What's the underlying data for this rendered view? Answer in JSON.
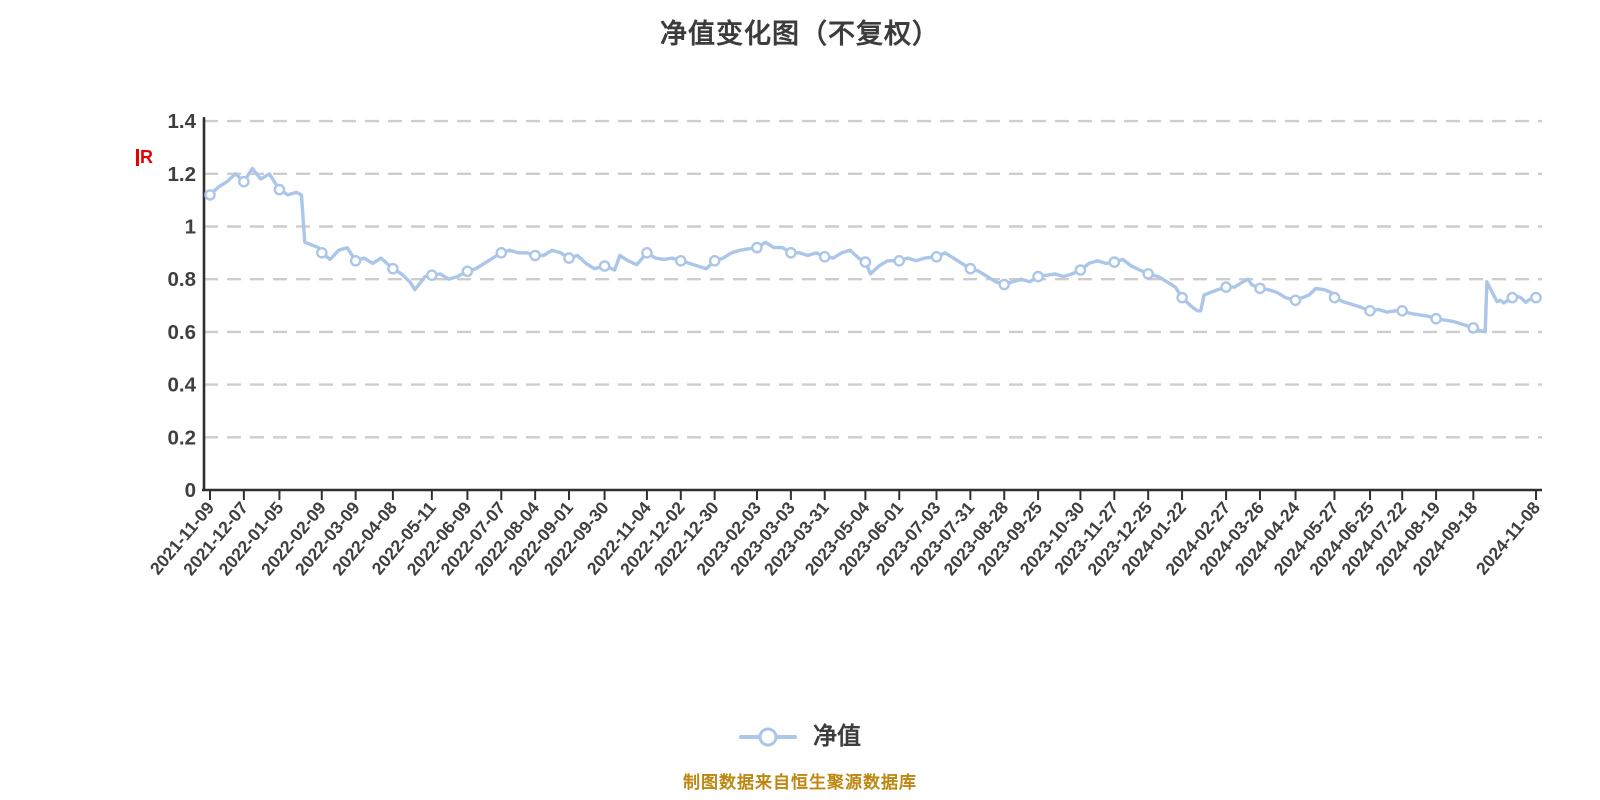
{
  "header": {
    "title": "净值变化图（不复权）"
  },
  "event_flag": {
    "label": "R"
  },
  "legend": {
    "items": [
      {
        "label": "净值"
      }
    ]
  },
  "footer": {
    "note": "制图数据来自恒生聚源数据库"
  },
  "chart_data": {
    "type": "line",
    "title": "净值变化图（不复权）",
    "xlabel": "",
    "ylabel": "",
    "ylim": [
      0,
      1.4
    ],
    "y_ticks": [
      0,
      0.2,
      0.4,
      0.6,
      0.8,
      1,
      1.2,
      1.4
    ],
    "grid": "horizontal-dashed",
    "legend_position": "bottom",
    "colors": {
      "line": "#abc6e8",
      "marker_fill": "#ffffff",
      "grid": "#cdcdcd",
      "axis": "#2f2f2f",
      "labels": "#3f3f3f",
      "title": "#3c3c3c",
      "footer": "#bd8712",
      "flag": "#e60000"
    },
    "x_tick_labels": [
      "2021-11-09",
      "2021-12-07",
      "2022-01-05",
      "2022-02-09",
      "2022-03-09",
      "2022-04-08",
      "2022-05-11",
      "2022-06-09",
      "2022-07-07",
      "2022-08-04",
      "2022-09-01",
      "2022-09-30",
      "2022-11-04",
      "2022-12-02",
      "2022-12-30",
      "2023-02-03",
      "2023-03-03",
      "2023-03-31",
      "2023-05-04",
      "2023-06-01",
      "2023-07-03",
      "2023-07-31",
      "2023-08-28",
      "2023-09-25",
      "2023-10-30",
      "2023-11-27",
      "2023-12-25",
      "2024-01-22",
      "2024-02-27",
      "2024-03-26",
      "2024-04-24",
      "2024-05-27",
      "2024-06-25",
      "2024-07-22",
      "2024-08-19",
      "2024-09-18",
      "2024-11-08"
    ],
    "series": [
      {
        "name": "净值",
        "points": [
          [
            "2021-11-09",
            1.12,
            1
          ],
          [
            "2021-11-16",
            1.15
          ],
          [
            "2021-11-23",
            1.17
          ],
          [
            "2021-11-30",
            1.2
          ],
          [
            "2021-12-07",
            1.17,
            1
          ],
          [
            "2021-12-14",
            1.22
          ],
          [
            "2021-12-21",
            1.18
          ],
          [
            "2021-12-28",
            1.2
          ],
          [
            "2022-01-05",
            1.14,
            1
          ],
          [
            "2022-01-12",
            1.12
          ],
          [
            "2022-01-19",
            1.13
          ],
          [
            "2022-01-24",
            1.12
          ],
          [
            "2022-01-26",
            0.94
          ],
          [
            "2022-02-07",
            0.92
          ],
          [
            "2022-02-09",
            0.9,
            1
          ],
          [
            "2022-02-16",
            0.875
          ],
          [
            "2022-02-23",
            0.91
          ],
          [
            "2022-03-02",
            0.92
          ],
          [
            "2022-03-09",
            0.87,
            1
          ],
          [
            "2022-03-16",
            0.88
          ],
          [
            "2022-03-23",
            0.86
          ],
          [
            "2022-03-30",
            0.88
          ],
          [
            "2022-04-08",
            0.84,
            1
          ],
          [
            "2022-04-15",
            0.82
          ],
          [
            "2022-04-22",
            0.79
          ],
          [
            "2022-04-27",
            0.76
          ],
          [
            "2022-05-05",
            0.81
          ],
          [
            "2022-05-11",
            0.815,
            1
          ],
          [
            "2022-05-18",
            0.82
          ],
          [
            "2022-05-25",
            0.8
          ],
          [
            "2022-06-01",
            0.81
          ],
          [
            "2022-06-09",
            0.83,
            1
          ],
          [
            "2022-06-16",
            0.84
          ],
          [
            "2022-06-23",
            0.86
          ],
          [
            "2022-06-30",
            0.88
          ],
          [
            "2022-07-07",
            0.9,
            1
          ],
          [
            "2022-07-14",
            0.91
          ],
          [
            "2022-07-21",
            0.9
          ],
          [
            "2022-07-28",
            0.9
          ],
          [
            "2022-08-04",
            0.89,
            1
          ],
          [
            "2022-08-11",
            0.89
          ],
          [
            "2022-08-18",
            0.91
          ],
          [
            "2022-08-25",
            0.9
          ],
          [
            "2022-09-01",
            0.88,
            1
          ],
          [
            "2022-09-08",
            0.89
          ],
          [
            "2022-09-15",
            0.86
          ],
          [
            "2022-09-22",
            0.84
          ],
          [
            "2022-09-30",
            0.85,
            1
          ],
          [
            "2022-10-10",
            0.835
          ],
          [
            "2022-10-13",
            0.89
          ],
          [
            "2022-10-20",
            0.87
          ],
          [
            "2022-10-27",
            0.855
          ],
          [
            "2022-11-04",
            0.9,
            1
          ],
          [
            "2022-11-11",
            0.88
          ],
          [
            "2022-11-18",
            0.875
          ],
          [
            "2022-11-25",
            0.88
          ],
          [
            "2022-12-02",
            0.87,
            1
          ],
          [
            "2022-12-09",
            0.86
          ],
          [
            "2022-12-16",
            0.85
          ],
          [
            "2022-12-23",
            0.84
          ],
          [
            "2022-12-30",
            0.87,
            1
          ],
          [
            "2023-01-06",
            0.88
          ],
          [
            "2023-01-13",
            0.9
          ],
          [
            "2023-01-20",
            0.91
          ],
          [
            "2023-02-03",
            0.92,
            1
          ],
          [
            "2023-02-10",
            0.94
          ],
          [
            "2023-02-17",
            0.92
          ],
          [
            "2023-02-24",
            0.92
          ],
          [
            "2023-03-03",
            0.9,
            1
          ],
          [
            "2023-03-10",
            0.9
          ],
          [
            "2023-03-17",
            0.89
          ],
          [
            "2023-03-24",
            0.9
          ],
          [
            "2023-03-31",
            0.885,
            1
          ],
          [
            "2023-04-07",
            0.88
          ],
          [
            "2023-04-14",
            0.9
          ],
          [
            "2023-04-21",
            0.91
          ],
          [
            "2023-04-28",
            0.88
          ],
          [
            "2023-05-04",
            0.865,
            1
          ],
          [
            "2023-05-09",
            0.82
          ],
          [
            "2023-05-16",
            0.85
          ],
          [
            "2023-05-23",
            0.87
          ],
          [
            "2023-06-01",
            0.87,
            1
          ],
          [
            "2023-06-08",
            0.88
          ],
          [
            "2023-06-15",
            0.87
          ],
          [
            "2023-06-22",
            0.88
          ],
          [
            "2023-07-03",
            0.885,
            1
          ],
          [
            "2023-07-10",
            0.9
          ],
          [
            "2023-07-17",
            0.88
          ],
          [
            "2023-07-24",
            0.86
          ],
          [
            "2023-07-31",
            0.84,
            1
          ],
          [
            "2023-08-07",
            0.83
          ],
          [
            "2023-08-14",
            0.81
          ],
          [
            "2023-08-21",
            0.79
          ],
          [
            "2023-08-28",
            0.78,
            1
          ],
          [
            "2023-09-04",
            0.79
          ],
          [
            "2023-09-11",
            0.8
          ],
          [
            "2023-09-18",
            0.79
          ],
          [
            "2023-09-25",
            0.81,
            1
          ],
          [
            "2023-10-09",
            0.82
          ],
          [
            "2023-10-16",
            0.81
          ],
          [
            "2023-10-23",
            0.82
          ],
          [
            "2023-10-30",
            0.835,
            1
          ],
          [
            "2023-11-06",
            0.86
          ],
          [
            "2023-11-13",
            0.87
          ],
          [
            "2023-11-20",
            0.86
          ],
          [
            "2023-11-27",
            0.865,
            1
          ],
          [
            "2023-12-04",
            0.875
          ],
          [
            "2023-12-11",
            0.85
          ],
          [
            "2023-12-18",
            0.835
          ],
          [
            "2023-12-25",
            0.82,
            1
          ],
          [
            "2024-01-02",
            0.81
          ],
          [
            "2024-01-09",
            0.79
          ],
          [
            "2024-01-16",
            0.77
          ],
          [
            "2024-01-22",
            0.73,
            1
          ],
          [
            "2024-01-29",
            0.7
          ],
          [
            "2024-02-02",
            0.68
          ],
          [
            "2024-02-06",
            0.68
          ],
          [
            "2024-02-08",
            0.74
          ],
          [
            "2024-02-20",
            0.76
          ],
          [
            "2024-02-27",
            0.77,
            1
          ],
          [
            "2024-03-05",
            0.77
          ],
          [
            "2024-03-12",
            0.79
          ],
          [
            "2024-03-15",
            0.8
          ],
          [
            "2024-03-19",
            0.78
          ],
          [
            "2024-03-26",
            0.765,
            1
          ],
          [
            "2024-04-02",
            0.76
          ],
          [
            "2024-04-09",
            0.75
          ],
          [
            "2024-04-16",
            0.73
          ],
          [
            "2024-04-24",
            0.72,
            1
          ],
          [
            "2024-05-06",
            0.74
          ],
          [
            "2024-05-10",
            0.765
          ],
          [
            "2024-05-17",
            0.76
          ],
          [
            "2024-05-23",
            0.75
          ],
          [
            "2024-05-27",
            0.73,
            1
          ],
          [
            "2024-06-03",
            0.715
          ],
          [
            "2024-06-10",
            0.705
          ],
          [
            "2024-06-17",
            0.695
          ],
          [
            "2024-06-25",
            0.68,
            1
          ],
          [
            "2024-07-02",
            0.685
          ],
          [
            "2024-07-09",
            0.675
          ],
          [
            "2024-07-16",
            0.68
          ],
          [
            "2024-07-22",
            0.68,
            1
          ],
          [
            "2024-07-29",
            0.67
          ],
          [
            "2024-08-05",
            0.665
          ],
          [
            "2024-08-12",
            0.66
          ],
          [
            "2024-08-19",
            0.65,
            1
          ],
          [
            "2024-08-26",
            0.645
          ],
          [
            "2024-09-02",
            0.64
          ],
          [
            "2024-09-09",
            0.63
          ],
          [
            "2024-09-18",
            0.615,
            1
          ],
          [
            "2024-09-24",
            0.605
          ],
          [
            "2024-09-27",
            0.6
          ],
          [
            "2024-09-30",
            0.79
          ],
          [
            "2024-10-08",
            0.715
          ],
          [
            "2024-10-10",
            0.72
          ],
          [
            "2024-10-14",
            0.71
          ],
          [
            "2024-10-18",
            0.725
          ],
          [
            "2024-10-21",
            0.73,
            1
          ],
          [
            "2024-10-24",
            0.735
          ],
          [
            "2024-10-28",
            0.73
          ],
          [
            "2024-10-31",
            0.712
          ],
          [
            "2024-11-04",
            0.722
          ],
          [
            "2024-11-08",
            0.73,
            1
          ]
        ]
      }
    ]
  }
}
